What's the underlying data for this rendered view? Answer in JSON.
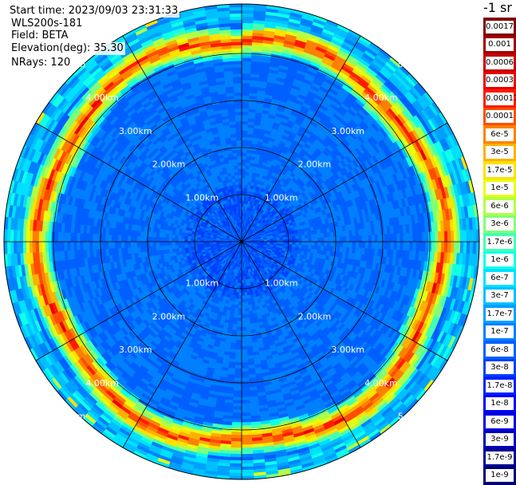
{
  "header": {
    "start_time": "Start time: 2023/09/03 23:31:33",
    "instrument": "WLS200s-181",
    "field": "Field: BETA",
    "elevation": "Elevation(deg): 35.30",
    "nrays": "NRays: 120"
  },
  "range_labels": [
    "1.00km",
    "2.00km",
    "3.00km",
    "4.00km",
    "5.00km"
  ],
  "colorbar": {
    "unit": "-1 sr",
    "levels": [
      {
        "label": "0.0017",
        "color": "#7f0000"
      },
      {
        "label": "0.001",
        "color": "#a10000"
      },
      {
        "label": "0.0006",
        "color": "#c40000"
      },
      {
        "label": "0.0003",
        "color": "#ea0000"
      },
      {
        "label": "0.00017",
        "color": "#ff1a00"
      },
      {
        "label": "0.0001",
        "color": "#ff4d00"
      },
      {
        "label": "6e-5",
        "color": "#ff8000"
      },
      {
        "label": "3e-5",
        "color": "#ffb000"
      },
      {
        "label": "1.7e-5",
        "color": "#ffe000"
      },
      {
        "label": "1e-5",
        "color": "#e6ff10"
      },
      {
        "label": "6e-6",
        "color": "#b3ff44"
      },
      {
        "label": "3e-6",
        "color": "#80ff77"
      },
      {
        "label": "1.7e-6",
        "color": "#44ffb3"
      },
      {
        "label": "1e-6",
        "color": "#10ffe6"
      },
      {
        "label": "6e-7",
        "color": "#00e0ff"
      },
      {
        "label": "3e-7",
        "color": "#00c0ff"
      },
      {
        "label": "1.7e-7",
        "color": "#00a0ff"
      },
      {
        "label": "1e-7",
        "color": "#0080ff"
      },
      {
        "label": "6e-8",
        "color": "#0060ff"
      },
      {
        "label": "3e-8",
        "color": "#0040ff"
      },
      {
        "label": "1.7e-8",
        "color": "#0020ff"
      },
      {
        "label": "1e-8",
        "color": "#0000ff"
      },
      {
        "label": "6e-9",
        "color": "#0000dc"
      },
      {
        "label": "3e-9",
        "color": "#0000b8"
      },
      {
        "label": "1.7e-9",
        "color": "#000094"
      },
      {
        "label": "1e-9",
        "color": "#000070"
      }
    ]
  }
}
